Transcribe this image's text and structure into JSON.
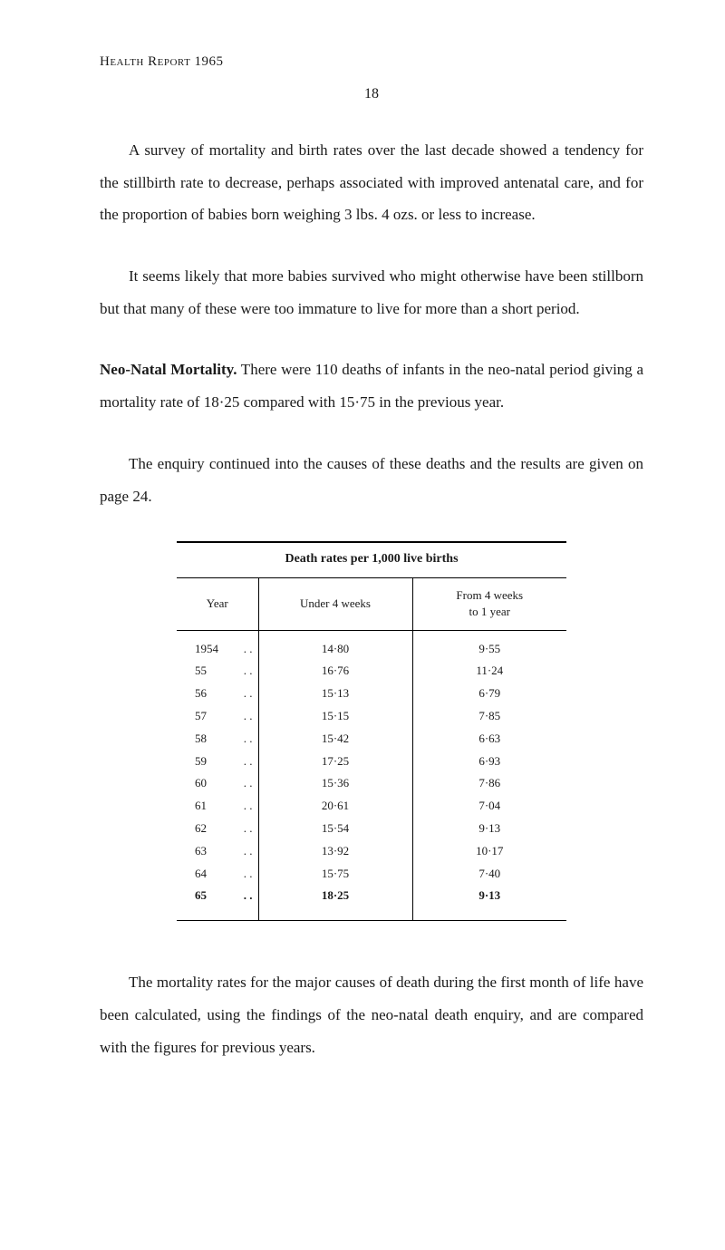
{
  "header": "Health Report 1965",
  "page_number": "18",
  "paragraphs": {
    "p1": "A survey of mortality and birth rates over the last decade showed a tendency for the stillbirth rate to decrease, perhaps associated with improved antenatal care, and for the proportion of babies born weighing 3 lbs. 4 ozs. or less to increase.",
    "p2": "It seems likely that more babies survived who might otherwise have been stillborn but that many of these were too immature to live for more than a short period.",
    "p3_title": "Neo-Natal Mortality.",
    "p3_body": "  There were 110 deaths of infants in the neo-natal period giving a mortality rate of 18·25 compared with 15·75 in the previous year.",
    "p4": "The enquiry continued into the causes of these deaths and the results are given on page 24.",
    "p5": "The mortality rates for the major causes of death during the first month of life have been calculated, using the findings of the neo-natal death enquiry, and are compared with the figures for previous years."
  },
  "table": {
    "title": "Death rates per 1,000 live births",
    "columns": {
      "year": "Year",
      "under4": "Under 4 weeks",
      "from4": "From 4 weeks\nto 1 year"
    },
    "rows": [
      {
        "year": "1954",
        "under4": "14·80",
        "from4": "9·55"
      },
      {
        "year": "55",
        "under4": "16·76",
        "from4": "11·24"
      },
      {
        "year": "56",
        "under4": "15·13",
        "from4": "6·79"
      },
      {
        "year": "57",
        "under4": "15·15",
        "from4": "7·85"
      },
      {
        "year": "58",
        "under4": "15·42",
        "from4": "6·63"
      },
      {
        "year": "59",
        "under4": "17·25",
        "from4": "6·93"
      },
      {
        "year": "60",
        "under4": "15·36",
        "from4": "7·86"
      },
      {
        "year": "61",
        "under4": "20·61",
        "from4": "7·04"
      },
      {
        "year": "62",
        "under4": "15·54",
        "from4": "9·13"
      },
      {
        "year": "63",
        "under4": "13·92",
        "from4": "10·17"
      },
      {
        "year": "64",
        "under4": "15·75",
        "from4": "7·40"
      },
      {
        "year": "65",
        "under4": "18·25",
        "from4": "9·13"
      }
    ]
  },
  "styling": {
    "background_color": "#ffffff",
    "text_color": "#1a1a1a",
    "border_color": "#000000",
    "body_font_family": "Georgia, Times New Roman, serif",
    "body_font_size": 17,
    "table_font_size": 13,
    "line_height": 2.1
  }
}
